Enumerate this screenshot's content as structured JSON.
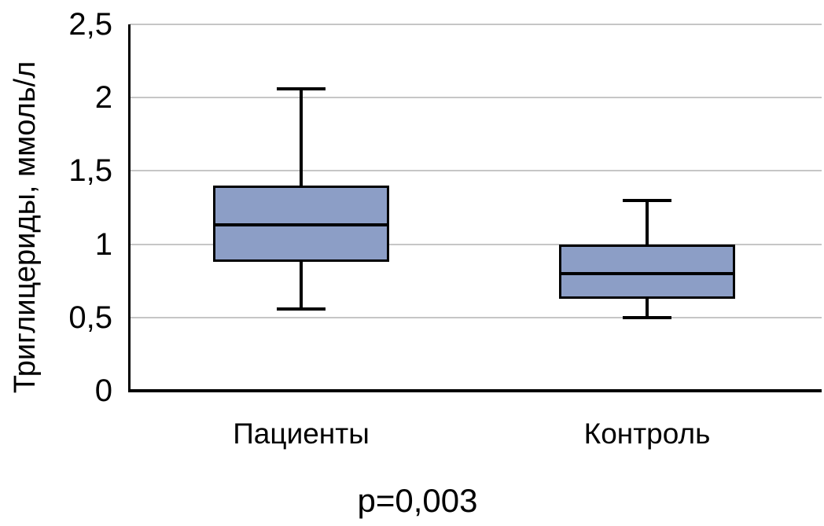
{
  "chart_data": {
    "type": "box",
    "title": "",
    "ylabel": "Триглицериды, ммоль/л",
    "xlabel": "",
    "ylim": [
      0,
      2.5
    ],
    "ytick_values": [
      0,
      0.5,
      1,
      1.5,
      2,
      2.5
    ],
    "ytick_labels": [
      "0",
      "0,5",
      "1",
      "1,5",
      "2",
      "2,5"
    ],
    "categories": [
      "Пациенты",
      "Контроль"
    ],
    "series": [
      {
        "name": "Пациенты",
        "whisker_low": 0.56,
        "q1": 0.88,
        "median": 1.13,
        "q3": 1.4,
        "whisker_high": 2.06
      },
      {
        "name": "Контроль",
        "whisker_low": 0.5,
        "q1": 0.63,
        "median": 0.8,
        "q3": 1.0,
        "whisker_high": 1.3
      }
    ],
    "annotation": "p=0,003",
    "grid": true,
    "legend": false,
    "colors": {
      "box_fill": "#8C9EC6",
      "box_border": "#000000",
      "median": "#000000",
      "whisker": "#000000",
      "gridline": "#C6C6C6",
      "axis": "#000000",
      "text": "#000000"
    }
  }
}
